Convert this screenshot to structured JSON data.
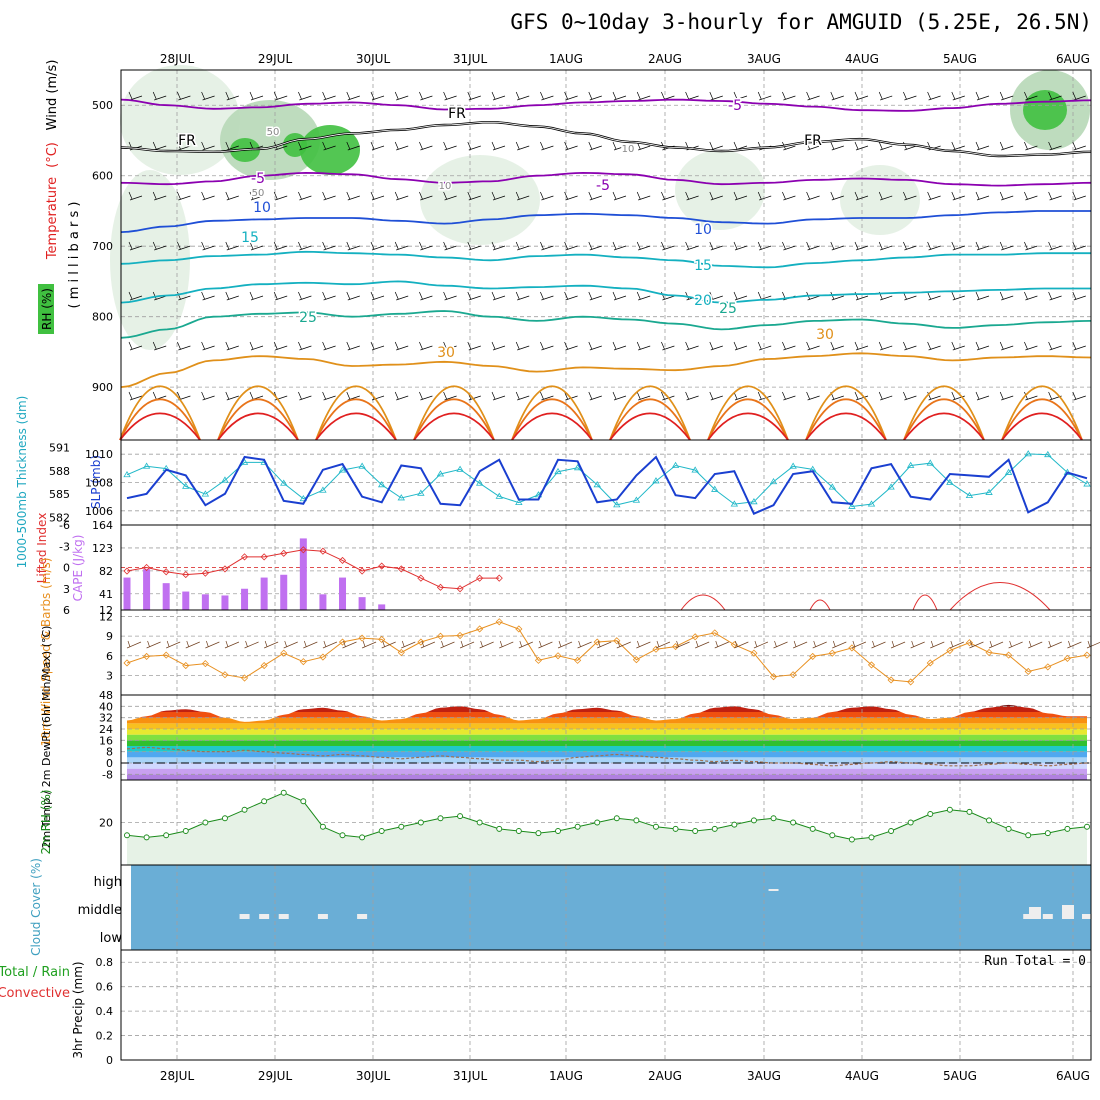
{
  "title": "GFS 0~10day 3-hourly for AMGUID (5.25E, 26.5N)",
  "colors": {
    "temp_cold": "#8b00b0",
    "temp_blue": "#1f4fd6",
    "temp_cyan": "#14b0c0",
    "temp_teal": "#1aa890",
    "temp_orange": "#e0901a",
    "temp_red": "#e02020",
    "freezing": "#000000",
    "rh_light": "#e3f0e3",
    "rh_mid": "#b7d8b7",
    "rh_high": "#40c040",
    "slp": "#1a3fd0",
    "thickness": "#20b8c8",
    "cape": "#c070f0",
    "lifted": "#e03030",
    "wind_speed": "#e89020",
    "barb": "#704020",
    "rh2m": "#1a8a1a",
    "cloud_bg": "#6aaed6",
    "cloud_bar": "#eeeeee"
  },
  "dates": [
    "28JUL",
    "29JUL",
    "30JUL",
    "31JUL",
    "1AUG",
    "2AUG",
    "3AUG",
    "4AUG",
    "5AUG",
    "6AUG"
  ],
  "chart_data": [
    {
      "type": "line",
      "panel": "upper-air",
      "title": "Temperature (°C) / Wind (m/s) / RH (%)",
      "ylabel": "(millibars)",
      "yticks": [
        "500",
        "600",
        "700",
        "800",
        "900"
      ],
      "ylim": [
        975,
        450
      ],
      "ylabel_parts": {
        "rh": "RH (%)",
        "temperature": "Temperature",
        "unit": "(°C)",
        "wind": "Wind (m/s)",
        "axis": "( m i l l i b a r s )"
      },
      "isotherm_labels": [
        "-5",
        "-5",
        "-5",
        "10",
        "10",
        "15",
        "15",
        "20",
        "25",
        "25",
        "30",
        "30",
        "FR",
        "FR",
        "FR",
        "10",
        "10",
        "50",
        "50"
      ],
      "isotherms": [
        {
          "label": "-5",
          "color": "#8b00b0",
          "p": [
            492,
            500,
            505,
            503,
            498,
            496,
            500,
            506,
            505,
            500,
            496,
            494,
            492,
            494,
            498,
            502,
            507,
            508,
            504,
            498,
            495,
            493
          ]
        },
        {
          "label": "FR",
          "color": "#000000",
          "p": [
            560,
            565,
            566,
            562,
            548,
            540,
            535,
            528,
            524,
            530,
            540,
            552,
            560,
            565,
            560,
            552,
            548,
            556,
            565,
            572,
            570,
            566
          ]
        },
        {
          "label": "-5",
          "color": "#8b00b0",
          "p": [
            610,
            612,
            608,
            600,
            596,
            598,
            605,
            610,
            608,
            600,
            596,
            598,
            606,
            612,
            610,
            606,
            604,
            606,
            612,
            614,
            612,
            610
          ]
        },
        {
          "label": "10",
          "color": "#1f4fd6",
          "p": [
            680,
            672,
            664,
            662,
            660,
            660,
            664,
            668,
            662,
            656,
            654,
            656,
            660,
            666,
            668,
            662,
            660,
            660,
            656,
            652,
            650,
            650
          ]
        },
        {
          "label": "15",
          "color": "#14b0c0",
          "p": [
            725,
            720,
            714,
            712,
            708,
            710,
            712,
            716,
            720,
            714,
            712,
            716,
            720,
            728,
            730,
            724,
            720,
            716,
            712,
            712,
            710,
            710
          ]
        },
        {
          "label": "20",
          "color": "#14b0c0",
          "p": [
            780,
            770,
            760,
            754,
            752,
            754,
            750,
            756,
            760,
            758,
            756,
            760,
            770,
            780,
            776,
            770,
            768,
            766,
            764,
            762,
            760,
            760
          ]
        },
        {
          "label": "25",
          "color": "#1aa890",
          "p": [
            830,
            818,
            800,
            796,
            794,
            800,
            796,
            792,
            800,
            806,
            800,
            804,
            810,
            818,
            812,
            806,
            804,
            810,
            816,
            812,
            808,
            806
          ]
        },
        {
          "label": "30",
          "color": "#e0901a",
          "p": [
            900,
            880,
            862,
            856,
            860,
            870,
            868,
            864,
            870,
            878,
            872,
            874,
            876,
            870,
            860,
            856,
            852,
            856,
            862,
            858,
            856,
            858
          ]
        }
      ]
    },
    {
      "type": "line",
      "panel": "thickness-slp",
      "ylabel_left": "1000-500mb Thickness (dm)",
      "ylabel_right": "SLP (mb)",
      "left_ticks": [
        "591",
        "588",
        "585",
        "582"
      ],
      "right_ticks": [
        "1010",
        "1008",
        "1006"
      ],
      "slp_range": [
        1005,
        1011
      ],
      "series": [
        {
          "name": "SLP (mb)",
          "values": [
            1006.9,
            1007.2,
            1008.9,
            1008.5,
            1006.4,
            1007.2,
            1009.8,
            1009.6,
            1006.7,
            1006.5,
            1008.9,
            1009.3,
            1007.0,
            1006.6,
            1009.2,
            1009.0,
            1006.5,
            1006.4,
            1008.8,
            1009.6,
            1006.8,
            1006.8,
            1009.6,
            1009.5,
            1006.6,
            1006.8,
            1008.5,
            1009.8,
            1007.1,
            1006.9,
            1008.6,
            1008.8,
            1005.8,
            1006.4,
            1008.6,
            1008.8,
            1006.6,
            1006.5,
            1009.0,
            1009.3,
            1007.0,
            1006.8,
            1008.6,
            1008.5,
            1008.4,
            1009.6,
            1005.9,
            1006.6,
            1008.7,
            1008.3
          ]
        },
        {
          "name": "1000-500mb Thickness (dm)",
          "values": [
            587.5,
            588.6,
            588.3,
            586.0,
            585.0,
            586.8,
            589.1,
            589.1,
            586.4,
            584.4,
            585.5,
            588.1,
            588.6,
            586.2,
            584.5,
            585.1,
            587.6,
            588.2,
            586.4,
            584.7,
            583.9,
            584.9,
            587.9,
            588.4,
            586.2,
            583.6,
            584.2,
            586.7,
            588.7,
            588.1,
            585.6,
            583.7,
            584.0,
            586.6,
            588.6,
            588.2,
            585.9,
            583.4,
            583.7,
            585.9,
            588.7,
            589.0,
            586.5,
            584.8,
            585.2,
            587.8,
            590.2,
            590.1,
            587.8,
            586.3
          ]
        }
      ]
    },
    {
      "type": "bar",
      "panel": "cape-lifted-index",
      "ylabel_left": "Lifted Index",
      "ylabel_right": "CAPE (J/kg)",
      "left_ticks": [
        "-6",
        "-3",
        "0",
        "3",
        "6"
      ],
      "right_ticks": [
        "164",
        "123",
        "82",
        "41",
        "12"
      ],
      "series": [
        {
          "name": "CAPE (J/kg)",
          "values": [
            70,
            85,
            60,
            45,
            40,
            38,
            50,
            70,
            75,
            140,
            40,
            70,
            35,
            22,
            12,
            12,
            12,
            12,
            12,
            12,
            12,
            12,
            12,
            12,
            12,
            12,
            12,
            12,
            12,
            12,
            12,
            12,
            12,
            12,
            12,
            12,
            12,
            12,
            12,
            12,
            12,
            12,
            12,
            12,
            12,
            12,
            12,
            12,
            12,
            12
          ]
        },
        {
          "name": "Lifted Index",
          "values": [
            0.5,
            0.0,
            0.6,
            1.0,
            0.8,
            0.2,
            -1.5,
            -1.5,
            -2.0,
            -2.5,
            -2.3,
            -1.0,
            0.5,
            -0.2,
            0.2,
            1.5,
            2.8,
            3.0,
            1.5,
            1.5,
            null,
            null,
            null,
            null,
            null,
            null,
            null,
            null,
            null,
            null,
            null,
            null,
            null,
            null,
            null,
            null,
            null,
            null,
            null,
            null,
            null,
            null,
            null,
            null,
            null,
            null,
            null,
            null,
            null,
            null
          ]
        }
      ]
    },
    {
      "type": "line",
      "panel": "wind10m",
      "ylabel": "10m Wind Speed & Barbs (m/s)",
      "yticks": [
        "12",
        "9",
        "6",
        "3"
      ],
      "ylim": [
        0,
        13
      ],
      "series": [
        {
          "name": "10m Wind Speed (m/s)",
          "values": [
            4.9,
            5.9,
            6.1,
            4.5,
            4.8,
            3.1,
            2.6,
            4.5,
            6.4,
            5.1,
            5.8,
            8.1,
            8.7,
            8.5,
            6.5,
            8.1,
            9.0,
            9.1,
            10.1,
            11.2,
            10.1,
            5.3,
            6.0,
            5.3,
            8.1,
            8.3,
            5.4,
            7.0,
            7.4,
            8.9,
            9.5,
            7.7,
            6.4,
            2.8,
            3.1,
            5.9,
            6.4,
            7.2,
            4.6,
            2.3,
            2.0,
            4.9,
            6.8,
            8.0,
            6.5,
            6.1,
            3.6,
            4.3,
            5.6,
            6.1
          ]
        }
      ]
    },
    {
      "type": "area",
      "panel": "temp2m",
      "ylabel": "2m Temp / 2m DewPt (6hr Min/Max) (°C)",
      "yticks": [
        "48",
        "40",
        "32",
        "24",
        "16",
        "8",
        "0",
        "-8"
      ],
      "ylim": [
        -12,
        48
      ],
      "series": [
        {
          "name": "2m Temp (°C)",
          "values": [
            30,
            33,
            37,
            38,
            36,
            32,
            29,
            30,
            34,
            38,
            39,
            37,
            33,
            30,
            31,
            35,
            39,
            40,
            38,
            34,
            30,
            31,
            35,
            38,
            39,
            37,
            33,
            30,
            31,
            35,
            39,
            40,
            38,
            34,
            31,
            32,
            36,
            39,
            40,
            38,
            34,
            31,
            32,
            36,
            39,
            41,
            39,
            35,
            33,
            33
          ]
        },
        {
          "name": "2m DewPt (°C)",
          "values": [
            10,
            11,
            10,
            9,
            8,
            8,
            9,
            8,
            7,
            6,
            5,
            6,
            5,
            4,
            3,
            4,
            5,
            4,
            3,
            2,
            2,
            1,
            2,
            4,
            5,
            6,
            5,
            4,
            3,
            2,
            1,
            2,
            1,
            0,
            0,
            -1,
            -2,
            -1,
            0,
            1,
            0,
            -1,
            -2,
            -2,
            -1,
            0,
            -1,
            -2,
            -1,
            0
          ]
        }
      ]
    },
    {
      "type": "line",
      "panel": "rh2m",
      "ylabel": "2m RH (%)",
      "yticks": [
        "20"
      ],
      "ylim": [
        0,
        40
      ],
      "series": [
        {
          "name": "2m RH (%)",
          "values": [
            14,
            13,
            14,
            16,
            20,
            22,
            26,
            30,
            34,
            30,
            18,
            14,
            13,
            16,
            18,
            20,
            22,
            23,
            20,
            17,
            16,
            15,
            16,
            18,
            20,
            22,
            21,
            18,
            17,
            16,
            17,
            19,
            21,
            22,
            20,
            17,
            14,
            12,
            13,
            16,
            20,
            24,
            26,
            25,
            21,
            17,
            14,
            15,
            17,
            18
          ]
        }
      ]
    },
    {
      "type": "bar",
      "panel": "cloud",
      "ylabel": "Cloud Cover (%)",
      "yticks": [
        "high",
        "middle",
        "low"
      ],
      "series": [
        {
          "name": "cloud",
          "values": [
            0,
            0,
            0,
            0,
            0,
            0,
            1,
            1,
            1,
            0,
            1,
            0,
            1,
            0,
            0,
            0,
            0,
            0,
            0,
            0,
            0,
            0,
            0,
            0,
            0,
            0,
            0,
            0,
            0,
            0,
            0,
            0,
            0,
            2,
            0,
            0,
            0,
            0,
            0,
            0,
            0,
            0,
            0,
            0,
            0,
            0,
            1,
            1,
            1,
            1
          ]
        }
      ]
    },
    {
      "type": "bar",
      "panel": "precip",
      "ylabel": "3hr Precip (mm)",
      "ylabel_left_a": "Total / Rain",
      "ylabel_left_b": "Convective",
      "yticks": [
        "0.8",
        "0.6",
        "0.4",
        "0.2",
        "0"
      ],
      "ylim": [
        0,
        0.9
      ],
      "annotation": "Run Total = 0",
      "values": []
    }
  ]
}
